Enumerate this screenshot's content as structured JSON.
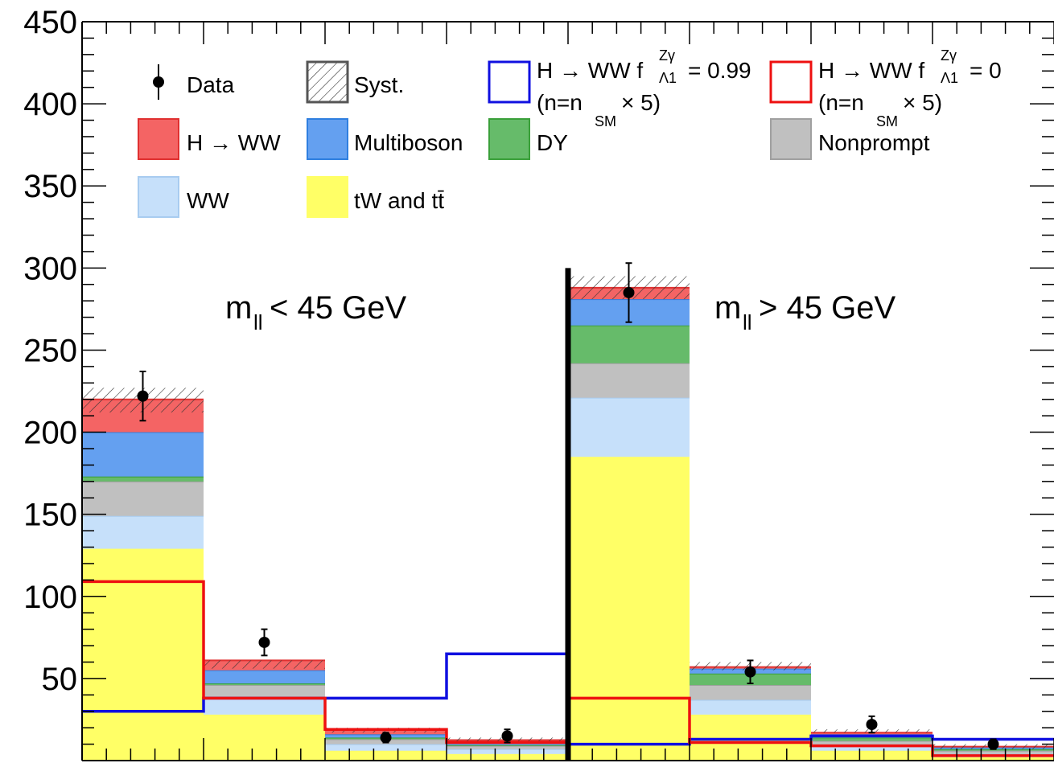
{
  "chart_data": {
    "type": "bar",
    "stacked": true,
    "ylim": [
      0,
      450
    ],
    "y_ticks": [
      "50",
      "100",
      "150",
      "200",
      "250",
      "300",
      "350",
      "400",
      "450"
    ],
    "bins": 8,
    "grid": false,
    "region_labels": {
      "left": {
        "main": "m",
        "sub": "ll",
        "rest": " < 45 GeV"
      },
      "right": {
        "main": "m",
        "sub": "ll",
        "rest": " > 45 GeV"
      }
    },
    "stack": [
      {
        "name": "tW and tt̄",
        "color": "#ffff66",
        "edge": "#ffff66",
        "values": [
          129,
          28,
          6,
          4,
          185,
          28,
          6,
          2
        ]
      },
      {
        "name": "WW",
        "color": "#c6e0fa",
        "edge": "#a8ccf0",
        "values": [
          20,
          10,
          4,
          3,
          36,
          9,
          3,
          2
        ]
      },
      {
        "name": "Nonprompt",
        "color": "#c0c0c0",
        "edge": "#a0a0a0",
        "values": [
          21,
          8,
          3,
          2,
          21,
          9,
          3,
          2
        ]
      },
      {
        "name": "DY",
        "color": "#66bb6a",
        "edge": "#3aa03a",
        "values": [
          3,
          1,
          1,
          0.5,
          23,
          7,
          2,
          1
        ]
      },
      {
        "name": "Multiboson",
        "color": "#64a0f0",
        "edge": "#2f7fe0",
        "values": [
          27,
          8,
          2,
          1.5,
          16,
          3,
          2,
          1
        ]
      },
      {
        "name": "H → WW",
        "color": "#f46464",
        "edge": "#e03030",
        "values": [
          20,
          6,
          3,
          1.5,
          7,
          1,
          1,
          0.5
        ]
      }
    ],
    "syst_band": [
      [
        212,
        227
      ],
      [
        56,
        61
      ],
      [
        17,
        20
      ],
      [
        11,
        14
      ],
      [
        281,
        295
      ],
      [
        55,
        60
      ],
      [
        17,
        19
      ],
      [
        7,
        10
      ]
    ],
    "data": {
      "name": "Data",
      "values": [
        222,
        72,
        14,
        15,
        285,
        54,
        22,
        10
      ],
      "errors": [
        15,
        8,
        3,
        4,
        18,
        7,
        5,
        3
      ]
    },
    "overlays": [
      {
        "name": "H → WW f_Λ1^Zγ = 0.99 (n=n_SM × 5)",
        "color": "#1010e0",
        "values": [
          30,
          38,
          38,
          65,
          10,
          13,
          15,
          13
        ]
      },
      {
        "name": "H → WW f_Λ1^Zγ = 0 (n=n_SM × 5)",
        "color": "#ee1010",
        "values": [
          109,
          38,
          19,
          11,
          38,
          11,
          9,
          3
        ]
      }
    ],
    "divider_after_bin": 4,
    "legend": {
      "data": "Data",
      "syst": "Syst.",
      "hww": "H → WW",
      "multiboson": "Multiboson",
      "dy": "DY",
      "nonprompt": "Nonprompt",
      "ww": "WW",
      "top": "tW and tt̄",
      "alt_prefix": "H → WW f",
      "alt_sup": "Zγ",
      "alt_sub": "Λ1",
      "alt_blue_val": "= 0.99",
      "alt_red_val": "= 0",
      "norm_prefix": "(n=n",
      "norm_sub": "SM",
      "norm_suffix": " × 5)",
      "colors": {
        "syst_edge": "#555555",
        "alt_blue": "#1010e0",
        "alt_red": "#ee1010"
      }
    }
  }
}
